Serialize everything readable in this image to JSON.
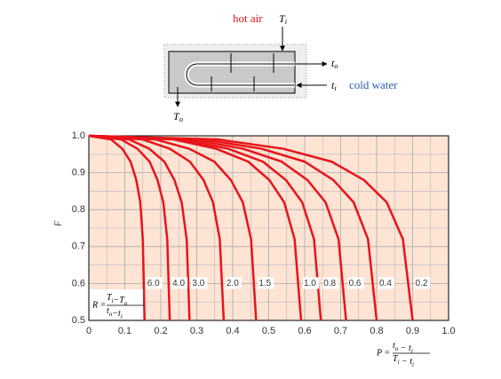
{
  "chart_data": {
    "type": "line",
    "y_label": "F",
    "x_label": {
      "symbol": "P =",
      "num": [
        {
          "b": "t",
          "s": "o"
        },
        " − ",
        {
          "b": "t",
          "s": "i"
        }
      ],
      "den": [
        {
          "b": "T",
          "s": "i"
        },
        " − ",
        {
          "b": "t",
          "s": "i"
        }
      ]
    },
    "r_label": {
      "symbol": "R =",
      "num": [
        {
          "b": "T",
          "s": "i"
        },
        "−",
        {
          "b": "T",
          "s": "o"
        }
      ],
      "den": [
        {
          "b": "t",
          "s": "o"
        },
        "−",
        {
          "b": "t",
          "s": "i"
        }
      ]
    },
    "annotations": {
      "hot_air": "hot air",
      "cold_water": "cold water",
      "hot_in": {
        "b": "T",
        "s": "i"
      },
      "hot_out": {
        "b": "T",
        "s": "o"
      },
      "cold_out": {
        "b": "t",
        "s": "o"
      },
      "cold_in": {
        "b": "t",
        "s": "i"
      }
    },
    "xlim": [
      0,
      1
    ],
    "ylim": [
      0.5,
      1
    ],
    "xticks": [
      0,
      0.1,
      0.2,
      0.3,
      0.4,
      0.5,
      0.6,
      0.7,
      0.8,
      0.9,
      {
        "value": 1,
        "label": "1.0"
      }
    ],
    "yticks": [
      0.5,
      0.6,
      0.7,
      0.8,
      0.9,
      {
        "value": 1,
        "label": "1.0"
      }
    ],
    "grid": true,
    "background": "#fde4d4",
    "series": [
      {
        "name": "6.0",
        "color": "#e8141b",
        "x": [
          0,
          0.062,
          0.093,
          0.116,
          0.132,
          0.143,
          0.15,
          0.155
        ],
        "values": [
          1,
          0.99,
          0.965,
          0.93,
          0.88,
          0.82,
          0.72,
          0.5
        ]
      },
      {
        "name": "4.0",
        "color": "#e8141b",
        "x": [
          0,
          0.09,
          0.135,
          0.169,
          0.191,
          0.207,
          0.218,
          0.225
        ],
        "values": [
          1,
          0.99,
          0.965,
          0.93,
          0.88,
          0.82,
          0.72,
          0.5
        ]
      },
      {
        "name": "3.0",
        "color": "#e8141b",
        "x": [
          0,
          0.112,
          0.168,
          0.21,
          0.238,
          0.258,
          0.272,
          0.28
        ],
        "values": [
          1,
          0.99,
          0.965,
          0.93,
          0.88,
          0.82,
          0.72,
          0.5
        ]
      },
      {
        "name": "2.0",
        "color": "#e8141b",
        "x": [
          0,
          0.15,
          0.225,
          0.281,
          0.319,
          0.345,
          0.364,
          0.375
        ],
        "values": [
          1,
          0.99,
          0.965,
          0.93,
          0.88,
          0.82,
          0.72,
          0.5
        ]
      },
      {
        "name": "1.5",
        "color": "#e8141b",
        "x": [
          0,
          0.186,
          0.279,
          0.349,
          0.395,
          0.428,
          0.451,
          0.465
        ],
        "values": [
          1,
          0.99,
          0.965,
          0.93,
          0.88,
          0.82,
          0.72,
          0.5
        ]
      },
      {
        "name": "1.0",
        "color": "#e8141b",
        "x": [
          0,
          0.236,
          0.354,
          0.443,
          0.502,
          0.543,
          0.572,
          0.59
        ],
        "values": [
          1,
          0.99,
          0.965,
          0.93,
          0.88,
          0.82,
          0.72,
          0.5
        ]
      },
      {
        "name": "0.8",
        "color": "#e8141b",
        "x": [
          0,
          0.258,
          0.387,
          0.484,
          0.548,
          0.593,
          0.626,
          0.645
        ],
        "values": [
          1,
          0.99,
          0.965,
          0.93,
          0.88,
          0.82,
          0.72,
          0.5
        ]
      },
      {
        "name": "0.6",
        "color": "#e8141b",
        "x": [
          0,
          0.286,
          0.429,
          0.536,
          0.608,
          0.658,
          0.694,
          0.715
        ],
        "values": [
          1,
          0.99,
          0.965,
          0.93,
          0.88,
          0.82,
          0.72,
          0.5
        ]
      },
      {
        "name": "0.4",
        "color": "#e8141b",
        "x": [
          0,
          0.32,
          0.48,
          0.6,
          0.68,
          0.736,
          0.776,
          0.8
        ],
        "values": [
          1,
          0.99,
          0.965,
          0.93,
          0.88,
          0.82,
          0.72,
          0.5
        ]
      },
      {
        "name": "0.2",
        "color": "#e8141b",
        "x": [
          0,
          0.36,
          0.54,
          0.675,
          0.765,
          0.828,
          0.873,
          0.9
        ],
        "values": [
          1,
          0.99,
          0.965,
          0.93,
          0.88,
          0.82,
          0.72,
          0.5
        ]
      }
    ]
  }
}
